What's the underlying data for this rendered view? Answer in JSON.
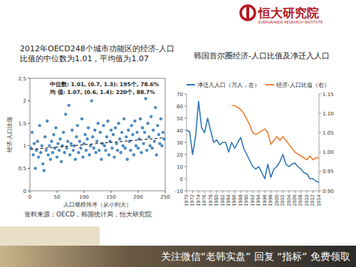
{
  "header": {
    "logo_text": "恒大研究院",
    "logo_subtext": "EVERGRANDE RESEARCH INSTITUTE"
  },
  "chart_data": [
    {
      "type": "scatter",
      "title": "2012年OECD248个城市功能区的经济-人口比值的中位数为1.01，平均值为1.07",
      "xlabel": "人口规模排序（从小到大）",
      "ylabel": "经济-人口比值",
      "annotations": [
        "中位数: 1.01,  (0.7, 1.3): 195个, 78.6%",
        "均  值: 1.07,  (0.6, 1.4): 220个, 88.7%"
      ],
      "xlim": [
        0,
        250
      ],
      "xticks": [
        0,
        50,
        100,
        150,
        200,
        250
      ],
      "ylim": [
        0,
        2.5
      ],
      "yticks": [
        0,
        0.5,
        1,
        1.5,
        2,
        2.5
      ],
      "grid": false,
      "series": [
        {
          "type": "scatter",
          "color": "#2e75b6",
          "marker": "circle",
          "x": [
            2,
            4,
            6,
            8,
            10,
            12,
            14,
            16,
            18,
            20,
            22,
            24,
            26,
            28,
            30,
            32,
            34,
            36,
            38,
            40,
            42,
            44,
            46,
            48,
            50,
            52,
            54,
            56,
            58,
            60,
            62,
            64,
            66,
            68,
            70,
            72,
            74,
            76,
            78,
            80,
            82,
            84,
            86,
            88,
            90,
            92,
            94,
            96,
            98,
            100,
            102,
            104,
            106,
            108,
            110,
            112,
            114,
            116,
            118,
            120,
            122,
            124,
            126,
            128,
            130,
            132,
            134,
            136,
            138,
            140,
            142,
            144,
            146,
            148,
            150,
            152,
            154,
            156,
            158,
            160,
            162,
            164,
            166,
            168,
            170,
            172,
            174,
            176,
            178,
            180,
            182,
            184,
            186,
            188,
            190,
            192,
            194,
            196,
            198,
            200,
            202,
            204,
            206,
            208,
            210,
            212,
            214,
            216,
            218,
            220,
            222,
            224,
            226,
            228,
            230,
            232,
            234,
            236,
            238,
            240,
            242,
            244,
            246,
            248
          ],
          "values": [
            0.95,
            1.3,
            0.8,
            1.05,
            0.5,
            0.9,
            1.1,
            0.75,
            1.45,
            0.85,
            1.0,
            0.6,
            0.45,
            1.2,
            0.9,
            1.55,
            0.8,
            1.0,
            0.7,
            1.1,
            0.85,
            1.25,
            0.95,
            1.4,
            0.75,
            1.05,
            0.9,
            1.15,
            0.65,
            1.0,
            1.3,
            0.85,
            1.7,
            0.95,
            1.1,
            1.9,
            0.8,
            1.05,
            1.35,
            0.9,
            1.0,
            0.7,
            1.2,
            1.45,
            0.85,
            1.1,
            0.95,
            1.6,
            0.75,
            1.05,
            1.25,
            0.9,
            1.15,
            1.4,
            0.8,
            1.0,
            2.0,
            1.2,
            0.95,
            1.35,
            0.85,
            1.1,
            1.5,
            0.9,
            1.3,
            0.7,
            1.05,
            1.45,
            1.0,
            0.9,
            1.2,
            1.55,
            0.8,
            1.1,
            1.35,
            0.95,
            1.25,
            0.75,
            1.4,
            1.05,
            0.9,
            1.5,
            1.15,
            0.85,
            1.3,
            1.0,
            1.6,
            0.95,
            1.2,
            0.7,
            1.35,
            1.1,
            0.9,
            1.45,
            1.25,
            0.8,
            1.55,
            1.0,
            1.3,
            0.95,
            1.15,
            1.6,
            0.85,
            1.4,
            1.05,
            1.3,
            2.05,
            0.9,
            1.5,
            1.2,
            1.0,
            1.65,
            0.95,
            1.35,
            1.1,
            1.85,
            0.8,
            1.45,
            1.25,
            1.05,
            1.6,
            1.0,
            1.3,
            1.15
          ]
        },
        {
          "type": "line",
          "color": "#000000",
          "line_style": "dashed",
          "x": [
            1,
            248
          ],
          "values": [
            0.92,
            1.18
          ]
        }
      ]
    },
    {
      "type": "line",
      "title": "韩国首尔圈经济-人口比值及净迁入人口",
      "legend": "top",
      "grid": false,
      "x": [
        1970,
        1971,
        1972,
        1973,
        1974,
        1975,
        1976,
        1977,
        1978,
        1979,
        1980,
        1981,
        1982,
        1983,
        1984,
        1985,
        1986,
        1987,
        1988,
        1989,
        1990,
        1991,
        1992,
        1993,
        1994,
        1995,
        1996,
        1997,
        1998,
        1999,
        2000,
        2001,
        2002,
        2003,
        2004,
        2005,
        2006,
        2007,
        2008,
        2009,
        2010,
        2011,
        2012,
        2013,
        2014
      ],
      "xlim": [
        1970,
        2014
      ],
      "xticks": [
        1970,
        1972,
        1974,
        1976,
        1978,
        1980,
        1982,
        1984,
        1986,
        1988,
        1990,
        1992,
        1994,
        1996,
        1998,
        2000,
        2002,
        2004,
        2006,
        2008,
        2010,
        2012,
        2014
      ],
      "ylim": [
        -10,
        70
      ],
      "yticks": [
        -10,
        0,
        10,
        20,
        30,
        40,
        50,
        60,
        70
      ],
      "y2lim": [
        0.9,
        1.15
      ],
      "y2ticks": [
        {
          "value": 0.9,
          "label": "0.90"
        },
        {
          "value": 0.95,
          "label": "0.95"
        },
        {
          "value": 1.0,
          "label": "1.00"
        },
        {
          "value": 1.05,
          "label": "1.05"
        },
        {
          "value": 1.1,
          "label": "1.10"
        },
        {
          "value": 1.15,
          "label": "1.15"
        }
      ],
      "series": [
        {
          "name": "净迁入人口（万人，左）",
          "color": "#2e75b6",
          "axis": "y",
          "values": [
            40,
            39,
            20,
            35,
            64,
            42,
            38,
            50,
            40,
            30,
            32,
            28,
            30,
            30,
            22,
            30,
            25,
            30,
            34,
            25,
            20,
            15,
            10,
            8,
            10,
            5,
            0,
            12,
            1,
            8,
            10,
            14,
            20,
            12,
            10,
            12,
            13,
            10,
            8,
            5,
            4,
            0,
            0,
            -2,
            -3
          ]
        },
        {
          "name": "经济-人口比值（右）",
          "color": "#ed7d31",
          "axis": "y2",
          "values": [
            null,
            null,
            null,
            null,
            null,
            null,
            null,
            null,
            null,
            null,
            null,
            null,
            null,
            null,
            null,
            1.12,
            1.12,
            1.115,
            1.11,
            1.1,
            1.085,
            1.07,
            1.05,
            1.045,
            1.05,
            1.055,
            1.06,
            1.05,
            1.02,
            1.03,
            1.04,
            1.03,
            1.04,
            1.03,
            1.02,
            1.01,
            1.0,
            0.995,
            0.99,
            0.985,
            0.98,
            0.99,
            0.98,
            0.985,
            0.985
          ]
        }
      ]
    }
  ],
  "footer": {
    "source": "资料来源：OECD，韩国统计局，恒大研究院",
    "watermark": "关注微信“老韩实盘” 回复 “指标” 免费领取"
  }
}
